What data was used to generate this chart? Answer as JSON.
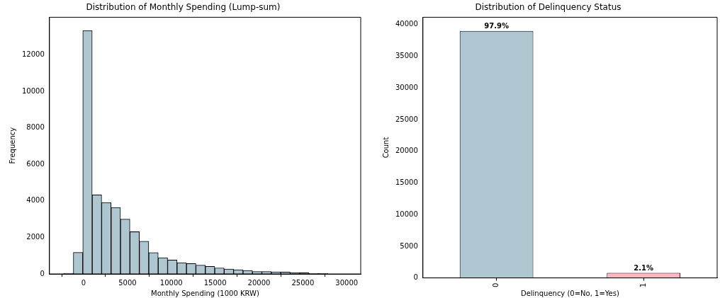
{
  "chart_data": [
    {
      "type": "histogram",
      "title": "Distribution of Monthly Spending (Lump-sum)",
      "xlabel": "Monthly Spending (1000 KRW)",
      "ylabel": "Frequency",
      "color": "#aec6cf",
      "bins": [
        -2250,
        -1175,
        -100,
        975,
        2050,
        3125,
        4200,
        5275,
        6350,
        7425,
        8500,
        9575,
        10650,
        11725,
        12800,
        13875,
        14950,
        16025,
        17100,
        18175,
        19250,
        20325,
        21400,
        22475,
        23550,
        24625,
        25700,
        26775,
        27850,
        28925,
        30000
      ],
      "values": [
        40,
        1180,
        13340,
        4330,
        3910,
        3640,
        3000,
        2310,
        1790,
        1170,
        890,
        760,
        620,
        570,
        480,
        410,
        330,
        270,
        230,
        190,
        130,
        130,
        110,
        100,
        70,
        60,
        30,
        30,
        null,
        null
      ],
      "xlim": [
        -3900,
        31600
      ],
      "xticks": [
        0,
        5000,
        10000,
        15000,
        20000,
        25000,
        30000
      ],
      "ylim": [
        0,
        14060
      ],
      "yticks": [
        0,
        2000,
        4000,
        6000,
        8000,
        10000,
        12000
      ]
    },
    {
      "type": "bar",
      "title": "Distribution of Delinquency Status",
      "xlabel": "Delinquency (0=No, 1=Yes)",
      "ylabel": "Count",
      "categories": [
        "0",
        "1"
      ],
      "values": [
        39000,
        800
      ],
      "colors": [
        "#aec6cf",
        "#ffb6c1"
      ],
      "annotations": [
        {
          "text": "97.9%",
          "x": "0",
          "y": 39000
        },
        {
          "text": "2.1%",
          "x": "1",
          "y": 800
        }
      ],
      "ylim": [
        0,
        41170
      ],
      "yticks": [
        0,
        5000,
        10000,
        15000,
        20000,
        25000,
        30000,
        35000,
        40000
      ]
    }
  ]
}
